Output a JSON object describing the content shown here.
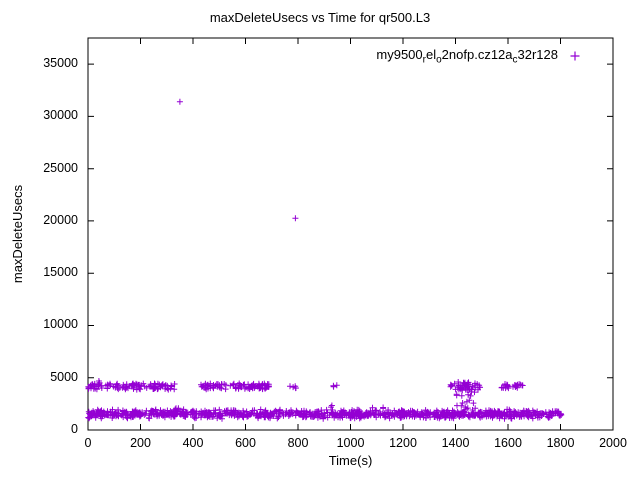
{
  "chart_data": {
    "type": "scatter",
    "title": "maxDeleteUsecs vs Time for qr500.L3",
    "xlabel": "Time(s)",
    "ylabel": "maxDeleteUsecs",
    "xlim": [
      0,
      2000
    ],
    "ylim": [
      0,
      37500
    ],
    "xticks": [
      0,
      200,
      400,
      600,
      800,
      1000,
      1200,
      1400,
      1600,
      1800,
      2000
    ],
    "yticks": [
      0,
      5000,
      10000,
      15000,
      20000,
      25000,
      30000,
      35000
    ],
    "grid": false,
    "marker": "plus",
    "color": "#9400d3",
    "axis_color": "#000000",
    "legend_position": "top-right-inside",
    "legend": {
      "series_label_raw": "my9500_rel_o2nofp.cz12a_c32r128",
      "segments": [
        {
          "text": "my9500",
          "sub": false
        },
        {
          "text": "r",
          "sub": true
        },
        {
          "text": "el",
          "sub": false
        },
        {
          "text": "o",
          "sub": true
        },
        {
          "text": "2nofp.cz12a",
          "sub": false
        },
        {
          "text": "c",
          "sub": true
        },
        {
          "text": "32r128",
          "sub": false
        }
      ]
    },
    "outlier_points": [
      [
        350,
        31400
      ],
      [
        790,
        20250
      ]
    ],
    "point_groups": [
      {
        "x": [
          0,
          1805
        ],
        "y": [
          1050,
          1980
        ],
        "count": 1000,
        "dist": "center"
      },
      {
        "x": [
          0,
          335
        ],
        "y": [
          3850,
          4450
        ],
        "count": 110,
        "dist": "uniform"
      },
      {
        "x": [
          430,
          700
        ],
        "y": [
          3900,
          4450
        ],
        "count": 95,
        "dist": "uniform"
      },
      {
        "x": [
          768,
          800
        ],
        "y": [
          4000,
          4250
        ],
        "count": 5,
        "dist": "uniform"
      },
      {
        "x": [
          925,
          950
        ],
        "y": [
          4100,
          4300
        ],
        "count": 3,
        "dist": "uniform"
      },
      {
        "x": [
          1380,
          1495
        ],
        "y": [
          3800,
          4550
        ],
        "count": 38,
        "dist": "uniform"
      },
      {
        "x": [
          1395,
          1480
        ],
        "y": [
          1900,
          4800
        ],
        "count": 26,
        "dist": "uniform"
      },
      {
        "x": [
          1575,
          1660
        ],
        "y": [
          4000,
          4400
        ],
        "count": 26,
        "dist": "uniform"
      },
      {
        "x": [
          330,
          365
        ],
        "y": [
          1900,
          2150
        ],
        "count": 5,
        "dist": "uniform"
      },
      {
        "x": [
          10,
          45
        ],
        "y": [
          4450,
          4700
        ],
        "count": 2,
        "dist": "uniform"
      },
      {
        "x": [
          900,
          960
        ],
        "y": [
          2000,
          2400
        ],
        "count": 2,
        "dist": "uniform"
      },
      {
        "x": [
          1050,
          1150
        ],
        "y": [
          1950,
          2150
        ],
        "count": 3,
        "dist": "uniform"
      }
    ]
  }
}
